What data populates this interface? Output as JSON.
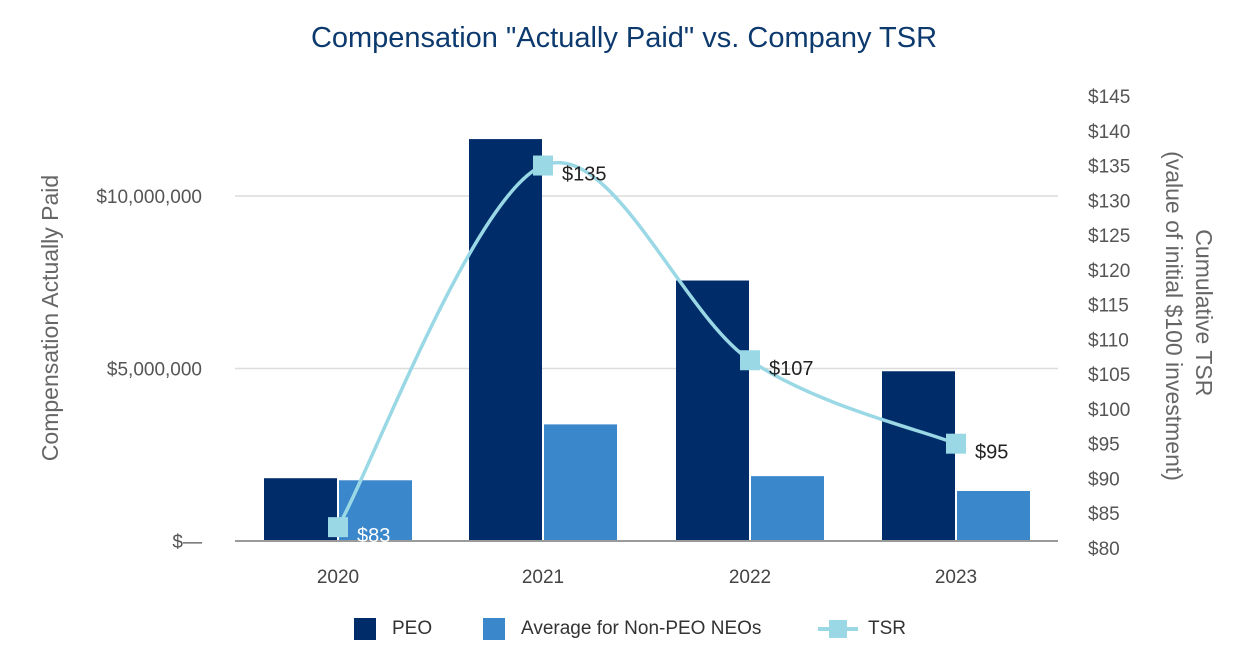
{
  "chart_data": {
    "type": "bar",
    "title": "Compensation \"Actually Paid\" vs. Company TSR",
    "categories": [
      "2020",
      "2021",
      "2022",
      "2023"
    ],
    "series": [
      {
        "name": "PEO",
        "kind": "bar",
        "axis": "left",
        "color": "#002d6a",
        "values": [
          1820000,
          11650000,
          7550000,
          4920000
        ]
      },
      {
        "name": "Average for Non-PEO NEOs",
        "kind": "bar",
        "axis": "left",
        "color": "#3b87cc",
        "values": [
          1760000,
          3380000,
          1880000,
          1450000
        ]
      },
      {
        "name": "TSR",
        "kind": "line",
        "axis": "right",
        "color": "#9ad8e6",
        "values": [
          83,
          135,
          107,
          95
        ],
        "labels": [
          "$83",
          "$135",
          "$107",
          "$95"
        ]
      }
    ],
    "ylabel": "Compensation Actually Paid",
    "ylim": [
      0,
      13000000
    ],
    "y_ticks": [
      0,
      5000000,
      10000000
    ],
    "y_tick_labels": [
      "$—",
      "$5,000,000",
      "$10,000,000"
    ],
    "y2label_lines": [
      "Cumulative TSR",
      "(value of initial $100 investment)"
    ],
    "y2lim": [
      80,
      145
    ],
    "y2_ticks": [
      80,
      85,
      90,
      95,
      100,
      105,
      110,
      115,
      120,
      125,
      130,
      135,
      140,
      145
    ],
    "y2_tick_labels": [
      "$80",
      "$85",
      "$90",
      "$95",
      "$100",
      "$105",
      "$110",
      "$115",
      "$120",
      "$125",
      "$130",
      "$135",
      "$140",
      "$145"
    ],
    "grid": true,
    "legend_position": "bottom-center"
  }
}
